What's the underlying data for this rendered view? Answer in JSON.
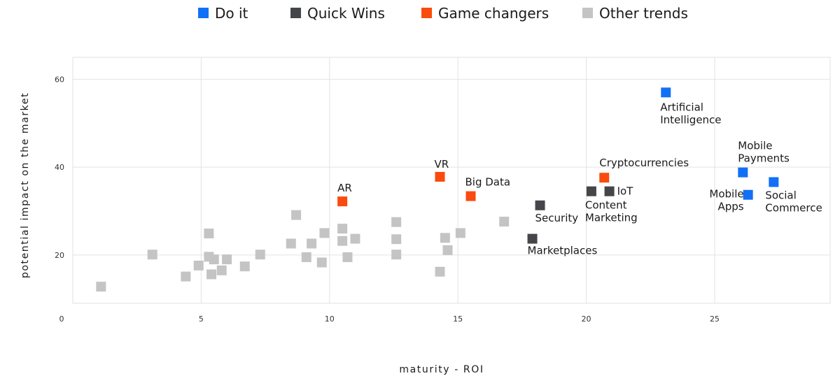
{
  "chart_data": {
    "type": "scatter",
    "title": "",
    "xlabel": "maturity - ROI",
    "ylabel": "potential impact on the market",
    "xlim": [
      0,
      29.5
    ],
    "ylim": [
      9,
      65
    ],
    "x_ticks": [
      5,
      10,
      15,
      20,
      25
    ],
    "y_ticks": [
      20,
      40,
      60
    ],
    "origin_label": "0",
    "grid": true,
    "legend_position": "top",
    "colors": {
      "do_it": "#1270f7",
      "quick_wins": "#45464a",
      "game_changers": "#fa4b0f",
      "other_trends": "#c4c4c4"
    },
    "series": [
      {
        "key": "do_it",
        "name": "Do it",
        "points": [
          {
            "x": 23.1,
            "y": 57,
            "label": [
              "Artificial",
              "Intelligence"
            ]
          },
          {
            "x": 26.1,
            "y": 38.8,
            "label": [
              "Mobile",
              "Payments"
            ]
          },
          {
            "x": 26.3,
            "y": 33.7,
            "label": [
              "Mobile",
              "Apps"
            ]
          },
          {
            "x": 27.3,
            "y": 36.6,
            "label": [
              "Social",
              "Commerce"
            ]
          }
        ]
      },
      {
        "key": "quick_wins",
        "name": "Quick Wins",
        "points": [
          {
            "x": 18.2,
            "y": 31.3,
            "label": [
              "Security"
            ]
          },
          {
            "x": 17.9,
            "y": 23.7,
            "label": [
              "Marketplaces"
            ]
          },
          {
            "x": 20.2,
            "y": 34.5,
            "label": [
              "Content",
              "Marketing"
            ]
          },
          {
            "x": 20.9,
            "y": 34.5,
            "label": [
              "IoT"
            ]
          }
        ]
      },
      {
        "key": "game_changers",
        "name": "Game changers",
        "points": [
          {
            "x": 10.5,
            "y": 32.2,
            "label": [
              "AR"
            ]
          },
          {
            "x": 14.3,
            "y": 37.8,
            "label": [
              "VR"
            ]
          },
          {
            "x": 15.5,
            "y": 33.4,
            "label": [
              "Big Data"
            ]
          },
          {
            "x": 20.7,
            "y": 37.6,
            "label": [
              "Cryptocurrencies"
            ]
          }
        ]
      },
      {
        "key": "other_trends",
        "name": "Other trends",
        "points": [
          {
            "x": 1.1,
            "y": 12.8
          },
          {
            "x": 3.1,
            "y": 20.1
          },
          {
            "x": 4.4,
            "y": 15.1
          },
          {
            "x": 4.9,
            "y": 17.6
          },
          {
            "x": 5.3,
            "y": 19.6
          },
          {
            "x": 5.3,
            "y": 24.9
          },
          {
            "x": 5.4,
            "y": 15.6
          },
          {
            "x": 5.5,
            "y": 19.0
          },
          {
            "x": 5.8,
            "y": 16.5
          },
          {
            "x": 6.0,
            "y": 19.0
          },
          {
            "x": 6.7,
            "y": 17.4
          },
          {
            "x": 7.3,
            "y": 20.1
          },
          {
            "x": 8.5,
            "y": 22.6
          },
          {
            "x": 8.7,
            "y": 29.1
          },
          {
            "x": 9.1,
            "y": 19.5
          },
          {
            "x": 9.3,
            "y": 22.6
          },
          {
            "x": 9.7,
            "y": 18.3
          },
          {
            "x": 9.8,
            "y": 25.0
          },
          {
            "x": 10.5,
            "y": 26.0
          },
          {
            "x": 10.5,
            "y": 23.2
          },
          {
            "x": 10.7,
            "y": 19.5
          },
          {
            "x": 11.0,
            "y": 23.7
          },
          {
            "x": 12.6,
            "y": 27.5
          },
          {
            "x": 12.6,
            "y": 23.6
          },
          {
            "x": 12.6,
            "y": 20.1
          },
          {
            "x": 14.3,
            "y": 16.2
          },
          {
            "x": 14.5,
            "y": 23.9
          },
          {
            "x": 14.6,
            "y": 21.1
          },
          {
            "x": 15.1,
            "y": 25.0
          },
          {
            "x": 16.8,
            "y": 27.6
          }
        ]
      }
    ]
  }
}
